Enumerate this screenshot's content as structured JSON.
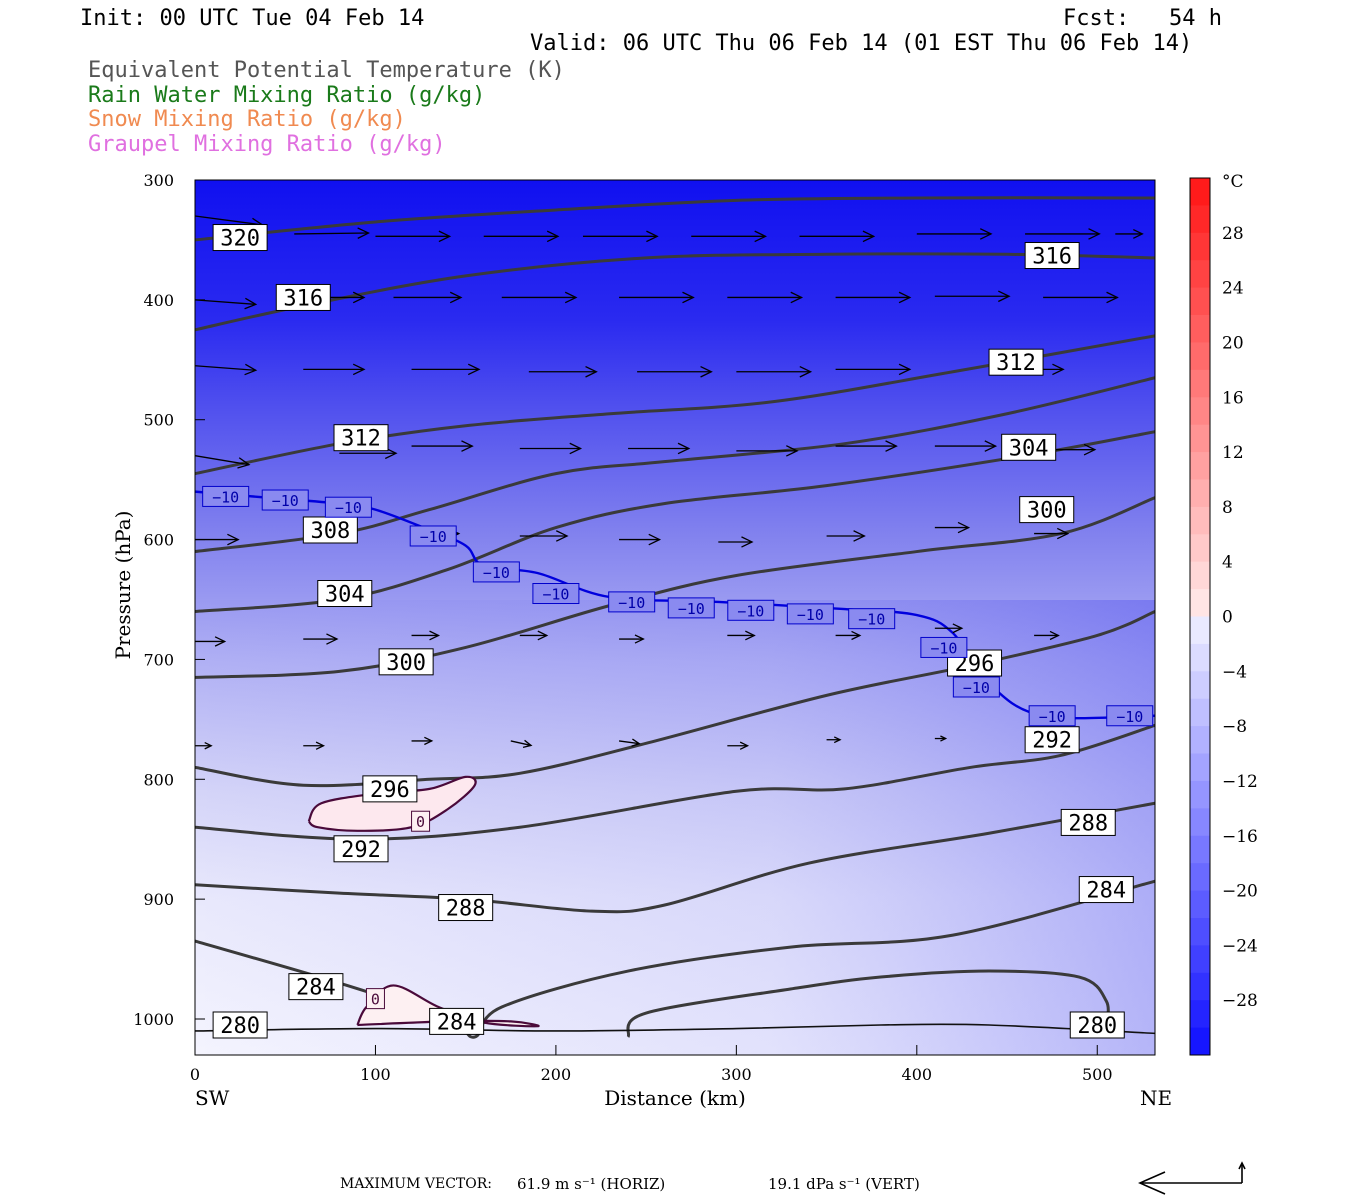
{
  "header": {
    "init": "Init: 00 UTC Tue 04 Feb 14",
    "fcst": "Fcst:   54 h",
    "valid": "Valid: 06 UTC Thu 06 Feb 14 (01 EST Thu 06 Feb 14)",
    "legend": [
      {
        "text": "Equivalent Potential Temperature (K)",
        "color": "#555555"
      },
      {
        "text": "Rain Water Mixing Ratio (g/kg)",
        "color": "#1a7a1a"
      },
      {
        "text": "Snow Mixing Ratio (g/kg)",
        "color": "#f08a50"
      },
      {
        "text": "Graupel Mixing Ratio (g/kg)",
        "color": "#e070e0"
      }
    ]
  },
  "footer": {
    "max_vector_label": "MAXIMUM VECTOR:",
    "horiz": "61.9 m s⁻¹ (HORIZ)",
    "vert": "19.1 dPa s⁻¹ (VERT)"
  },
  "chart_data": {
    "type": "heatmap",
    "xlabel": "Distance (km)",
    "ylabel": "Pressure (hPa)",
    "x_end_labels": [
      "SW",
      "NE"
    ],
    "xlim": [
      0,
      532
    ],
    "ylim": [
      1030,
      300
    ],
    "x_ticks": [
      0,
      100,
      200,
      300,
      400,
      500
    ],
    "y_ticks": [
      300,
      400,
      500,
      600,
      700,
      800,
      900,
      1000
    ],
    "colorbar": {
      "unit": "°C",
      "ticks": [
        28,
        24,
        20,
        16,
        12,
        8,
        4,
        0,
        -4,
        -8,
        -12,
        -16,
        -20,
        -24,
        -28
      ],
      "range": [
        -32,
        32
      ]
    },
    "theta_e_contours": [
      {
        "level": 320,
        "points": [
          [
            0,
            350
          ],
          [
            100,
            335
          ],
          [
            200,
            325
          ],
          [
            300,
            317
          ],
          [
            400,
            315
          ],
          [
            532,
            315
          ]
        ]
      },
      {
        "level": 316,
        "points": [
          [
            0,
            425
          ],
          [
            60,
            405
          ],
          [
            150,
            380
          ],
          [
            250,
            365
          ],
          [
            350,
            362
          ],
          [
            450,
            362
          ],
          [
            532,
            365
          ]
        ]
      },
      {
        "level": 312,
        "points": [
          [
            0,
            545
          ],
          [
            80,
            520
          ],
          [
            150,
            505
          ],
          [
            230,
            495
          ],
          [
            320,
            485
          ],
          [
            420,
            460
          ],
          [
            532,
            430
          ]
        ]
      },
      {
        "level": 308,
        "points": [
          [
            0,
            610
          ],
          [
            80,
            595
          ],
          [
            130,
            575
          ],
          [
            200,
            545
          ],
          [
            260,
            535
          ],
          [
            360,
            520
          ],
          [
            450,
            495
          ],
          [
            532,
            465
          ]
        ]
      },
      {
        "level": 304,
        "points": [
          [
            0,
            660
          ],
          [
            80,
            650
          ],
          [
            140,
            625
          ],
          [
            200,
            590
          ],
          [
            260,
            570
          ],
          [
            350,
            555
          ],
          [
            460,
            530
          ],
          [
            532,
            510
          ]
        ]
      },
      {
        "level": 300,
        "points": [
          [
            0,
            715
          ],
          [
            80,
            710
          ],
          [
            150,
            690
          ],
          [
            230,
            655
          ],
          [
            300,
            630
          ],
          [
            400,
            610
          ],
          [
            480,
            595
          ],
          [
            532,
            565
          ]
        ]
      },
      {
        "level": 296,
        "points": [
          [
            0,
            790
          ],
          [
            60,
            805
          ],
          [
            130,
            800
          ],
          [
            180,
            795
          ],
          [
            250,
            770
          ],
          [
            350,
            730
          ],
          [
            430,
            705
          ],
          [
            500,
            680
          ],
          [
            532,
            660
          ]
        ]
      },
      {
        "level": 292,
        "points": [
          [
            0,
            840
          ],
          [
            90,
            850
          ],
          [
            180,
            840
          ],
          [
            300,
            810
          ],
          [
            360,
            808
          ],
          [
            430,
            790
          ],
          [
            480,
            780
          ],
          [
            532,
            755
          ]
        ]
      },
      {
        "level": 288,
        "points": [
          [
            0,
            888
          ],
          [
            80,
            895
          ],
          [
            150,
            900
          ],
          [
            220,
            910
          ],
          [
            260,
            905
          ],
          [
            340,
            870
          ],
          [
            440,
            845
          ],
          [
            532,
            820
          ]
        ]
      },
      {
        "level": 284,
        "points": [
          [
            0,
            935
          ],
          [
            80,
            970
          ],
          [
            140,
            1000
          ],
          [
            155,
            1015
          ],
          [
            170,
            990
          ],
          [
            240,
            960
          ],
          [
            330,
            940
          ],
          [
            420,
            930
          ],
          [
            532,
            885
          ]
        ]
      },
      {
        "level": 284,
        "points": [
          [
            240,
            1015
          ],
          [
            250,
            995
          ],
          [
            330,
            975
          ],
          [
            380,
            965
          ],
          [
            440,
            960
          ],
          [
            490,
            965
          ],
          [
            505,
            985
          ],
          [
            505,
            1005
          ]
        ]
      },
      {
        "level": 280,
        "points": [
          [
            0,
            1010
          ],
          [
            100,
            1008
          ],
          [
            200,
            1010
          ],
          [
            300,
            1008
          ],
          [
            380,
            1005
          ],
          [
            440,
            1005
          ],
          [
            532,
            1012
          ]
        ]
      }
    ],
    "theta_e_labels": [
      {
        "text": "320",
        "x": 25,
        "p": 348
      },
      {
        "text": "316",
        "x": 60,
        "p": 398
      },
      {
        "text": "316",
        "x": 475,
        "p": 363
      },
      {
        "text": "312",
        "x": 92,
        "p": 515
      },
      {
        "text": "312",
        "x": 455,
        "p": 452
      },
      {
        "text": "308",
        "x": 75,
        "p": 592
      },
      {
        "text": "304",
        "x": 83,
        "p": 645
      },
      {
        "text": "304",
        "x": 462,
        "p": 523
      },
      {
        "text": "300",
        "x": 117,
        "p": 702
      },
      {
        "text": "300",
        "x": 472,
        "p": 575
      },
      {
        "text": "296",
        "x": 108,
        "p": 808
      },
      {
        "text": "296",
        "x": 432,
        "p": 703
      },
      {
        "text": "292",
        "x": 92,
        "p": 858
      },
      {
        "text": "292",
        "x": 475,
        "p": 767
      },
      {
        "text": "288",
        "x": 150,
        "p": 907
      },
      {
        "text": "288",
        "x": 495,
        "p": 836
      },
      {
        "text": "284",
        "x": 67,
        "p": 973
      },
      {
        "text": "284",
        "x": 145,
        "p": 1002
      },
      {
        "text": "284",
        "x": 505,
        "p": 892
      },
      {
        "text": "280",
        "x": 25,
        "p": 1005
      },
      {
        "text": "280",
        "x": 500,
        "p": 1005
      }
    ],
    "isotherm_minus10": {
      "points": [
        [
          0,
          560
        ],
        [
          40,
          565
        ],
        [
          80,
          570
        ],
        [
          100,
          575
        ],
        [
          130,
          592
        ],
        [
          150,
          605
        ],
        [
          160,
          622
        ],
        [
          190,
          628
        ],
        [
          230,
          648
        ],
        [
          290,
          652
        ],
        [
          360,
          658
        ],
        [
          400,
          663
        ],
        [
          420,
          678
        ],
        [
          440,
          720
        ],
        [
          470,
          747
        ],
        [
          532,
          747
        ]
      ],
      "labels": [
        {
          "text": "−10",
          "x": 17,
          "p": 564
        },
        {
          "text": "−10",
          "x": 50,
          "p": 567
        },
        {
          "text": "−10",
          "x": 85,
          "p": 573
        },
        {
          "text": "−10",
          "x": 132,
          "p": 597
        },
        {
          "text": "−10",
          "x": 167,
          "p": 627
        },
        {
          "text": "−10",
          "x": 200,
          "p": 645
        },
        {
          "text": "−10",
          "x": 242,
          "p": 652
        },
        {
          "text": "−10",
          "x": 275,
          "p": 657
        },
        {
          "text": "−10",
          "x": 308,
          "p": 659
        },
        {
          "text": "−10",
          "x": 341,
          "p": 662
        },
        {
          "text": "−10",
          "x": 375,
          "p": 666
        },
        {
          "text": "−10",
          "x": 415,
          "p": 690
        },
        {
          "text": "−10",
          "x": 433,
          "p": 723
        },
        {
          "text": "−10",
          "x": 475,
          "p": 747
        },
        {
          "text": "−10",
          "x": 518,
          "p": 747
        }
      ]
    },
    "zero_contours": [
      {
        "points": [
          [
            63,
            835
          ],
          [
            70,
            820
          ],
          [
            100,
            812
          ],
          [
            130,
            808
          ],
          [
            150,
            798
          ],
          [
            155,
            805
          ],
          [
            140,
            825
          ],
          [
            120,
            840
          ],
          [
            90,
            843
          ],
          [
            68,
            840
          ],
          [
            63,
            835
          ]
        ],
        "label": {
          "text": "0",
          "x": 125,
          "p": 835
        }
      },
      {
        "points": [
          [
            90,
            1005
          ],
          [
            95,
            990
          ],
          [
            110,
            972
          ],
          [
            135,
            990
          ],
          [
            160,
            1003
          ],
          [
            190,
            1006
          ],
          [
            175,
            1002
          ],
          [
            140,
            1002
          ],
          [
            90,
            1005
          ]
        ],
        "label": {
          "text": "0",
          "x": 100,
          "p": 983
        }
      }
    ],
    "wind_vectors": [
      {
        "x": 55,
        "p": 345,
        "u": 55,
        "w": -1
      },
      {
        "x": 100,
        "p": 347,
        "u": 55,
        "w": 0
      },
      {
        "x": 160,
        "p": 347,
        "u": 55,
        "w": 0
      },
      {
        "x": 215,
        "p": 347,
        "u": 55,
        "w": 0
      },
      {
        "x": 275,
        "p": 347,
        "u": 55,
        "w": 0
      },
      {
        "x": 335,
        "p": 347,
        "u": 55,
        "w": 0
      },
      {
        "x": 400,
        "p": 345,
        "u": 55,
        "w": 0
      },
      {
        "x": 460,
        "p": 345,
        "u": 55,
        "w": 0
      },
      {
        "x": 510,
        "p": 345,
        "u": 20,
        "w": 0
      },
      {
        "x": 0,
        "p": 330,
        "u": 50,
        "w": 10
      },
      {
        "x": 0,
        "p": 400,
        "u": 45,
        "w": 5
      },
      {
        "x": 60,
        "p": 398,
        "u": 45,
        "w": 0
      },
      {
        "x": 110,
        "p": 398,
        "u": 50,
        "w": 0
      },
      {
        "x": 170,
        "p": 398,
        "u": 55,
        "w": 0
      },
      {
        "x": 235,
        "p": 398,
        "u": 55,
        "w": 0
      },
      {
        "x": 295,
        "p": 398,
        "u": 55,
        "w": 0
      },
      {
        "x": 355,
        "p": 398,
        "u": 55,
        "w": 0
      },
      {
        "x": 410,
        "p": 397,
        "u": 55,
        "w": 0
      },
      {
        "x": 470,
        "p": 398,
        "u": 55,
        "w": 0
      },
      {
        "x": 0,
        "p": 455,
        "u": 45,
        "w": 5
      },
      {
        "x": 60,
        "p": 458,
        "u": 45,
        "w": 0
      },
      {
        "x": 120,
        "p": 458,
        "u": 50,
        "w": 0
      },
      {
        "x": 185,
        "p": 460,
        "u": 50,
        "w": 0
      },
      {
        "x": 245,
        "p": 460,
        "u": 55,
        "w": 0
      },
      {
        "x": 300,
        "p": 460,
        "u": 55,
        "w": 0
      },
      {
        "x": 355,
        "p": 458,
        "u": 55,
        "w": 0
      },
      {
        "x": 440,
        "p": 458,
        "u": 55,
        "w": 0
      },
      {
        "x": 0,
        "p": 530,
        "u": 40,
        "w": 10
      },
      {
        "x": 80,
        "p": 528,
        "u": 42,
        "w": 0
      },
      {
        "x": 120,
        "p": 522,
        "u": 45,
        "w": 0
      },
      {
        "x": 180,
        "p": 524,
        "u": 45,
        "w": 0
      },
      {
        "x": 240,
        "p": 524,
        "u": 45,
        "w": 0
      },
      {
        "x": 300,
        "p": 526,
        "u": 45,
        "w": 0
      },
      {
        "x": 355,
        "p": 522,
        "u": 45,
        "w": 0
      },
      {
        "x": 410,
        "p": 522,
        "u": 45,
        "w": 0
      },
      {
        "x": 465,
        "p": 525,
        "u": 45,
        "w": 0
      },
      {
        "x": 0,
        "p": 600,
        "u": 32,
        "w": 0
      },
      {
        "x": 60,
        "p": 597,
        "u": 35,
        "w": 0
      },
      {
        "x": 120,
        "p": 595,
        "u": 35,
        "w": 0
      },
      {
        "x": 180,
        "p": 597,
        "u": 35,
        "w": 0
      },
      {
        "x": 235,
        "p": 600,
        "u": 30,
        "w": 0
      },
      {
        "x": 290,
        "p": 602,
        "u": 25,
        "w": 0
      },
      {
        "x": 350,
        "p": 597,
        "u": 28,
        "w": 0
      },
      {
        "x": 410,
        "p": 590,
        "u": 25,
        "w": 0
      },
      {
        "x": 465,
        "p": 595,
        "u": 25,
        "w": 0
      },
      {
        "x": 0,
        "p": 685,
        "u": 22,
        "w": 0
      },
      {
        "x": 60,
        "p": 683,
        "u": 25,
        "w": 0
      },
      {
        "x": 120,
        "p": 680,
        "u": 20,
        "w": 0
      },
      {
        "x": 180,
        "p": 680,
        "u": 20,
        "w": 0
      },
      {
        "x": 235,
        "p": 683,
        "u": 18,
        "w": 0
      },
      {
        "x": 295,
        "p": 680,
        "u": 20,
        "w": 0
      },
      {
        "x": 355,
        "p": 680,
        "u": 18,
        "w": 0
      },
      {
        "x": 410,
        "p": 674,
        "u": 20,
        "w": 0
      },
      {
        "x": 465,
        "p": 680,
        "u": 18,
        "w": 0
      },
      {
        "x": 0,
        "p": 772,
        "u": 12,
        "w": 0
      },
      {
        "x": 60,
        "p": 772,
        "u": 15,
        "w": 0
      },
      {
        "x": 120,
        "p": 768,
        "u": 15,
        "w": 0
      },
      {
        "x": 175,
        "p": 768,
        "u": 15,
        "w": 5
      },
      {
        "x": 235,
        "p": 768,
        "u": 15,
        "w": 3
      },
      {
        "x": 295,
        "p": 772,
        "u": 15,
        "w": 0
      },
      {
        "x": 350,
        "p": 767,
        "u": 10,
        "w": 0
      },
      {
        "x": 410,
        "p": 766,
        "u": 8,
        "w": 0
      },
      {
        "x": 465,
        "p": 765,
        "u": 10,
        "w": 0
      }
    ]
  }
}
